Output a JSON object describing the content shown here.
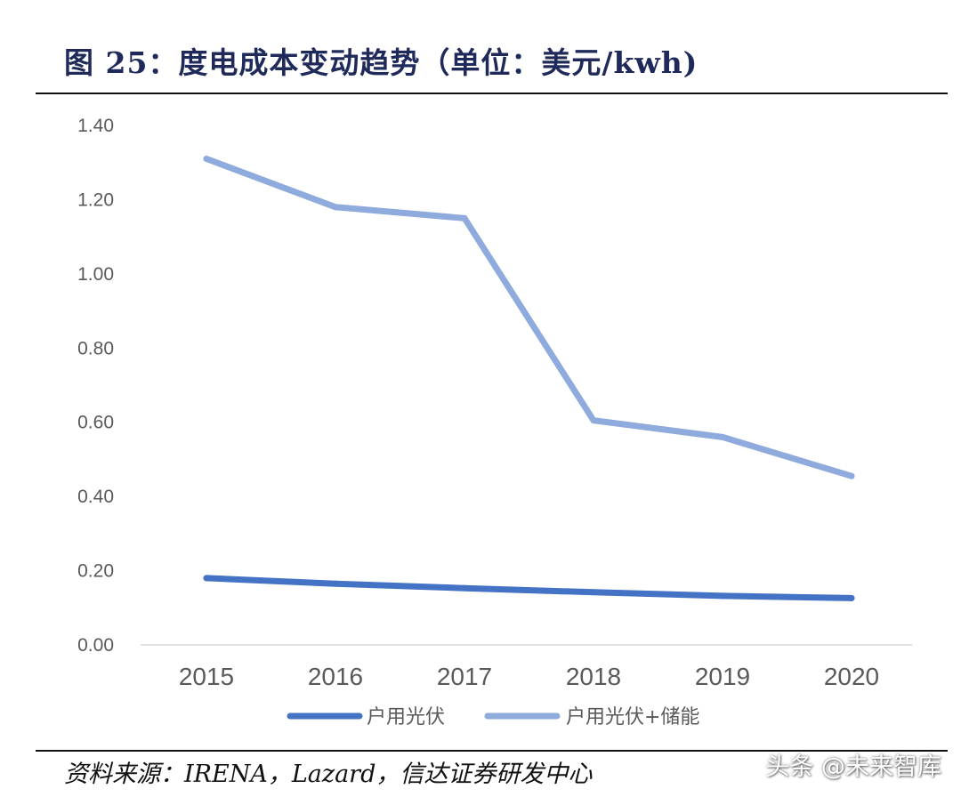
{
  "title": "图 25：度电成本变动趋势（单位：美元/kwh)",
  "source": "资料来源：IRENA，Lazard，信达证券研发中心",
  "watermark": "头条 @未来智库",
  "chart_data": {
    "type": "line",
    "title": "图 25：度电成本变动趋势（单位：美元/kwh)",
    "xlabel": "",
    "ylabel": "",
    "categories": [
      "2015",
      "2016",
      "2017",
      "2018",
      "2019",
      "2020"
    ],
    "series": [
      {
        "name": "户用光伏",
        "values": [
          0.18,
          0.165,
          0.153,
          0.142,
          0.132,
          0.126
        ],
        "color": "#4472c4"
      },
      {
        "name": "户用光伏+储能",
        "values": [
          1.31,
          1.18,
          1.15,
          0.605,
          0.56,
          0.455
        ],
        "color": "#8faadc"
      }
    ],
    "ylim": [
      0,
      1.4
    ],
    "yticks": [
      "0.00",
      "0.20",
      "0.40",
      "0.60",
      "0.80",
      "1.00",
      "1.20",
      "1.40"
    ],
    "grid": false,
    "legend": "bottom"
  }
}
